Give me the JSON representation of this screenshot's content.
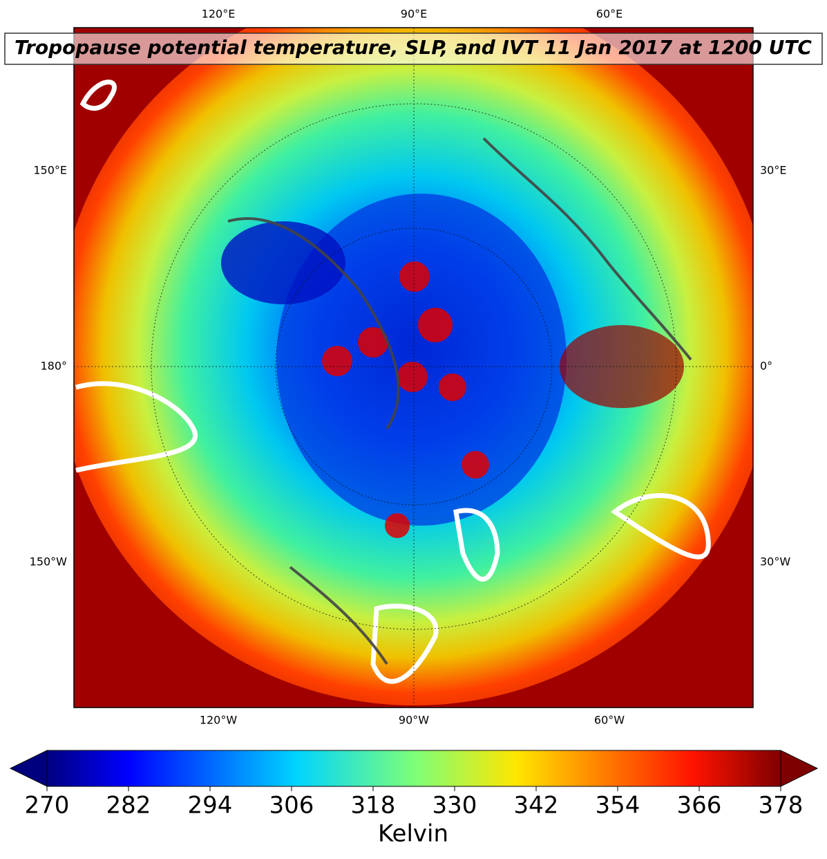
{
  "title": "Tropopause potential temperature, SLP, and IVT 11 Jan 2017 at 1200 UTC",
  "map": {
    "top_labels": [
      "120°E",
      "90°E",
      "60°E"
    ],
    "left_labels": [
      "150°E",
      "180°",
      "150°W"
    ],
    "right_labels": [
      "30°E",
      "0°",
      "30°W"
    ],
    "bottom_labels": [
      "120°W",
      "90°W",
      "60°W"
    ]
  },
  "colorbar": {
    "label": "Kelvin",
    "range": [
      270,
      378
    ],
    "ticks": [
      270,
      282,
      294,
      306,
      318,
      330,
      342,
      354,
      366,
      378
    ]
  }
}
